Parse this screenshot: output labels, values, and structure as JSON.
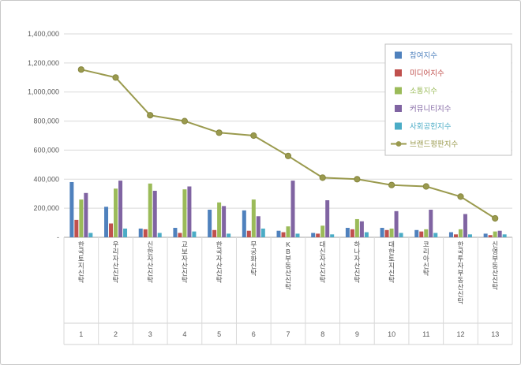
{
  "chart_data": {
    "type": "bar",
    "title": "",
    "categories": [
      "한국토지신탁",
      "우리자산신탁",
      "신한자산신탁",
      "교보자산신탁",
      "한국자산신탁",
      "무궁화신탁",
      "KB부동산신탁",
      "대신자산신탁",
      "하나자산신탁",
      "대한토지신탁",
      "코리아신탁",
      "한국투자부동산신탁",
      "신영부동산신탁"
    ],
    "ranks": [
      "1",
      "2",
      "3",
      "4",
      "5",
      "6",
      "7",
      "8",
      "9",
      "10",
      "11",
      "12",
      "13"
    ],
    "series": [
      {
        "name": "참여지수",
        "type": "bar",
        "color": "#4F81BD",
        "values": [
          380000,
          210000,
          60000,
          65000,
          190000,
          185000,
          45000,
          30000,
          65000,
          65000,
          50000,
          35000,
          25000
        ]
      },
      {
        "name": "미디어지수",
        "type": "bar",
        "color": "#C0504D",
        "values": [
          120000,
          95000,
          55000,
          30000,
          50000,
          45000,
          35000,
          25000,
          55000,
          50000,
          40000,
          20000,
          15000
        ]
      },
      {
        "name": "소통지수",
        "type": "bar",
        "color": "#9BBB59",
        "values": [
          260000,
          335000,
          370000,
          330000,
          240000,
          260000,
          75000,
          80000,
          125000,
          60000,
          55000,
          55000,
          40000
        ]
      },
      {
        "name": "커뮤니티지수",
        "type": "bar",
        "color": "#8064A2",
        "values": [
          305000,
          390000,
          320000,
          350000,
          215000,
          145000,
          390000,
          255000,
          110000,
          180000,
          190000,
          160000,
          45000
        ]
      },
      {
        "name": "사회공헌지수",
        "type": "bar",
        "color": "#4BACC6",
        "values": [
          30000,
          60000,
          30000,
          40000,
          25000,
          60000,
          25000,
          20000,
          35000,
          30000,
          30000,
          20000,
          20000
        ]
      },
      {
        "name": "브랜드평판지수",
        "type": "line",
        "color": "#9A9A4E",
        "values": [
          1155000,
          1100000,
          840000,
          800000,
          720000,
          700000,
          560000,
          410000,
          400000,
          360000,
          350000,
          280000,
          130000
        ]
      }
    ],
    "y_axis": {
      "min": 0,
      "max": 1400000,
      "step": 200000,
      "zero_label": "-",
      "tick_labels": [
        "-",
        "200,000",
        "400,000",
        "600,000",
        "800,000",
        "1,000,000",
        "1,200,000",
        "1,400,000"
      ]
    },
    "legend_position": "top-right",
    "grid": true
  }
}
